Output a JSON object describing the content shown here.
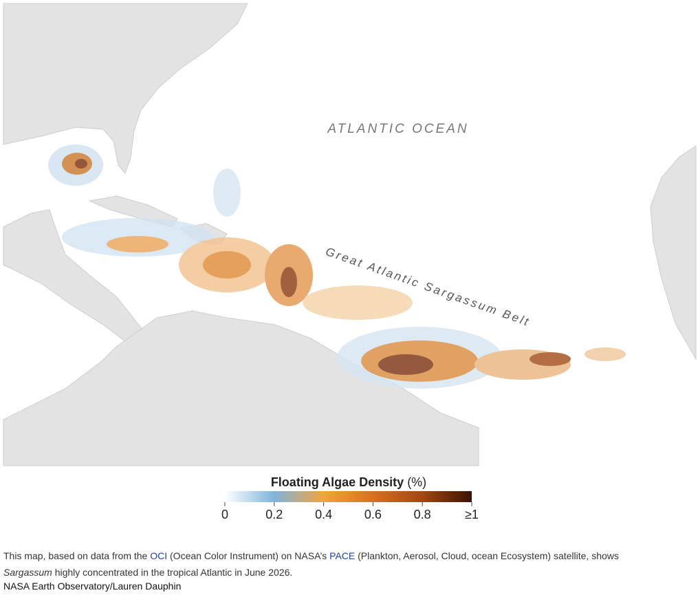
{
  "map": {
    "labels": [
      "ATLANTIC OCEAN",
      "Great Atlantic Sargassum Belt"
    ]
  },
  "legend": {
    "title": "Floating Algae Density",
    "unit": "(%)",
    "ticks": [
      0,
      0.2,
      0.4,
      0.6,
      0.8,
      {
        "value": 1,
        "label": "≥1"
      }
    ],
    "colors": [
      "#ffffff",
      "#7fb3dc",
      "#f2a43a",
      "#d9701e",
      "#a4460f",
      "#3a1405"
    ]
  },
  "caption": {
    "parts": [
      "This map, based on data from the ",
      "OCI",
      " (Ocean Color Instrument) on NASA’s ",
      "PACE",
      " (Plankton, Aerosol, Cloud, ocean Ecosystem) satellite, shows ",
      "Sargassum",
      " highly concentrated in the tropical Atlantic in June 2026."
    ]
  },
  "credit": "NASA Earth Observatory/Lauren Dauphin"
}
